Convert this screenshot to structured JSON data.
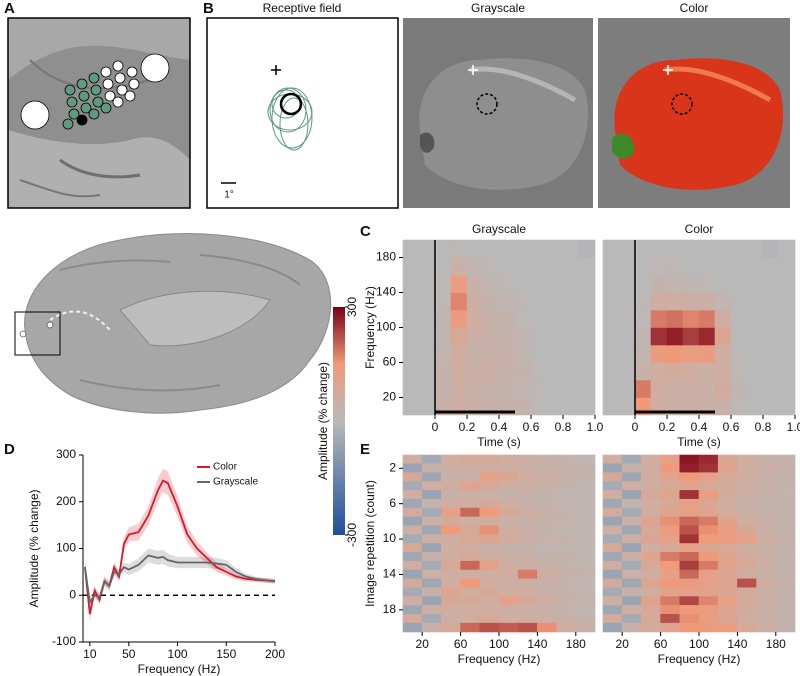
{
  "panel_labels": [
    "A",
    "B",
    "C",
    "D",
    "E"
  ],
  "panel_b": {
    "titles": [
      "Receptive field",
      "Grayscale",
      "Color"
    ],
    "scale_label": "1°"
  },
  "chart_data": [
    {
      "type": "heatmap",
      "title": "Grayscale",
      "xlabel": "Time (s)",
      "ylabel": "Frequency (Hz)",
      "xlim": [
        -0.2,
        1.0
      ],
      "ylim": [
        0,
        200
      ],
      "xticks": [
        0,
        0.2,
        0.4,
        0.6,
        0.8,
        {
          "value": 1,
          "label": "1.0"
        }
      ],
      "yticks": [
        20,
        60,
        100,
        140,
        180
      ],
      "x_edges": [
        -0.2,
        -0.1,
        0,
        0.1,
        0.2,
        0.3,
        0.4,
        0.5,
        0.6,
        0.7,
        0.8,
        0.9,
        1.0
      ],
      "y_edges": [
        0,
        20,
        40,
        60,
        80,
        100,
        120,
        140,
        160,
        180,
        200
      ],
      "event_line": 0,
      "stimulus_bar": [
        0,
        0.5
      ],
      "values": [
        [
          0,
          0,
          40,
          60,
          50,
          40,
          40,
          30,
          10,
          0,
          0,
          0
        ],
        [
          0,
          0,
          30,
          50,
          40,
          40,
          30,
          20,
          10,
          0,
          0,
          0
        ],
        [
          0,
          0,
          30,
          60,
          50,
          50,
          40,
          30,
          10,
          0,
          0,
          0
        ],
        [
          0,
          0,
          20,
          60,
          40,
          40,
          40,
          20,
          0,
          0,
          0,
          0
        ],
        [
          0,
          0,
          20,
          80,
          50,
          40,
          30,
          20,
          0,
          0,
          0,
          0
        ],
        [
          0,
          0,
          20,
          140,
          60,
          40,
          30,
          10,
          0,
          0,
          0,
          0
        ],
        [
          0,
          0,
          10,
          170,
          50,
          30,
          20,
          10,
          0,
          0,
          0,
          0
        ],
        [
          0,
          0,
          10,
          130,
          40,
          20,
          10,
          0,
          0,
          0,
          0,
          0
        ],
        [
          0,
          0,
          0,
          40,
          20,
          10,
          0,
          0,
          0,
          0,
          0,
          0
        ],
        [
          0,
          0,
          0,
          10,
          0,
          0,
          0,
          0,
          0,
          0,
          0,
          -10
        ]
      ]
    },
    {
      "type": "heatmap",
      "title": "Color",
      "xlabel": "Time (s)",
      "xlim": [
        -0.2,
        1.0
      ],
      "ylim": [
        0,
        200
      ],
      "xticks": [
        0,
        0.2,
        0.4,
        0.6,
        0.8,
        {
          "value": 1,
          "label": "1.0"
        }
      ],
      "x_edges": [
        -0.2,
        -0.1,
        0,
        0.1,
        0.2,
        0.3,
        0.4,
        0.5,
        0.6,
        0.7,
        0.8,
        0.9,
        1.0
      ],
      "y_edges": [
        0,
        20,
        40,
        60,
        80,
        100,
        120,
        140,
        160,
        180,
        200
      ],
      "event_line": 0,
      "stimulus_bar": [
        0,
        0.5
      ],
      "values": [
        [
          0,
          0,
          150,
          60,
          50,
          50,
          50,
          40,
          10,
          0,
          0,
          0
        ],
        [
          0,
          0,
          180,
          60,
          50,
          50,
          40,
          70,
          20,
          0,
          0,
          0
        ],
        [
          0,
          0,
          40,
          60,
          70,
          60,
          50,
          60,
          10,
          0,
          0,
          0
        ],
        [
          0,
          0,
          20,
          140,
          150,
          130,
          140,
          60,
          10,
          0,
          0,
          0
        ],
        [
          0,
          0,
          20,
          250,
          270,
          240,
          260,
          90,
          0,
          0,
          0,
          0
        ],
        [
          0,
          0,
          10,
          180,
          190,
          170,
          180,
          60,
          0,
          0,
          0,
          0
        ],
        [
          0,
          0,
          10,
          60,
          60,
          50,
          50,
          20,
          0,
          0,
          0,
          0
        ],
        [
          0,
          0,
          0,
          30,
          20,
          20,
          10,
          0,
          0,
          0,
          0,
          0
        ],
        [
          0,
          0,
          0,
          10,
          10,
          0,
          0,
          0,
          0,
          0,
          0,
          0
        ],
        [
          0,
          0,
          0,
          0,
          0,
          0,
          0,
          0,
          0,
          0,
          -10,
          0
        ]
      ]
    },
    {
      "type": "colorbar",
      "label": "Amplitude (% change)",
      "clim": [
        -300,
        300
      ],
      "ticks": [
        300,
        -300
      ],
      "stops": [
        -300,
        0,
        150,
        300
      ],
      "colors": [
        "#1f4f9c",
        "#b9b9b9",
        "#f09a7a",
        "#7a0016"
      ]
    },
    {
      "type": "line",
      "xlabel": "Frequency (Hz)",
      "ylabel": "Amplitude (% change)",
      "xlim": [
        3,
        200
      ],
      "ylim": [
        -100,
        300
      ],
      "xticks": [
        10,
        50,
        100,
        150,
        200
      ],
      "yticks": [
        -100,
        0,
        100,
        200,
        300
      ],
      "hline": 0,
      "legend": "upper right",
      "x": [
        5,
        10,
        15,
        20,
        25,
        30,
        35,
        40,
        45,
        50,
        60,
        70,
        80,
        85,
        90,
        100,
        110,
        120,
        130,
        140,
        150,
        160,
        170,
        180,
        190,
        200
      ],
      "series": [
        {
          "name": "Color",
          "color": "#d7192b",
          "values": [
            60,
            -40,
            10,
            -10,
            30,
            20,
            60,
            40,
            110,
            130,
            135,
            170,
            225,
            245,
            240,
            190,
            130,
            100,
            80,
            60,
            50,
            40,
            35,
            33,
            32,
            30
          ],
          "errors": [
            15,
            15,
            10,
            10,
            10,
            10,
            10,
            12,
            15,
            15,
            18,
            20,
            25,
            25,
            25,
            22,
            18,
            15,
            12,
            10,
            8,
            6,
            5,
            5,
            5,
            5
          ]
        },
        {
          "name": "Grayscale",
          "color": "#666666",
          "values": [
            60,
            -15,
            0,
            -5,
            30,
            20,
            50,
            45,
            60,
            55,
            65,
            85,
            80,
            82,
            75,
            70,
            70,
            70,
            70,
            68,
            65,
            50,
            40,
            35,
            32,
            30
          ],
          "errors": [
            12,
            12,
            8,
            8,
            8,
            8,
            8,
            10,
            10,
            12,
            14,
            15,
            15,
            15,
            14,
            12,
            12,
            12,
            12,
            12,
            10,
            8,
            6,
            5,
            5,
            5
          ]
        }
      ]
    },
    {
      "type": "heatmap",
      "xlabel": "Frequency (Hz)",
      "ylabel": "Image repetition (count)",
      "xlim": [
        0,
        200
      ],
      "ylim": [
        20.5,
        0.5
      ],
      "xticks": [
        20,
        60,
        100,
        140,
        180
      ],
      "yticks": [
        2,
        6,
        10,
        14,
        18
      ],
      "x_edges": [
        0,
        20,
        40,
        60,
        80,
        100,
        120,
        140,
        160,
        180,
        200
      ],
      "y_edges": [
        0.5,
        1.5,
        2.5,
        3.5,
        4.5,
        5.5,
        6.5,
        7.5,
        8.5,
        9.5,
        10.5,
        11.5,
        12.5,
        13.5,
        14.5,
        15.5,
        16.5,
        17.5,
        18.5,
        19.5,
        20.5
      ],
      "values": [
        [
          60,
          -40,
          60,
          80,
          80,
          60,
          50,
          40,
          30,
          20
        ],
        [
          -60,
          40,
          50,
          60,
          60,
          60,
          50,
          40,
          40,
          30
        ],
        [
          80,
          -50,
          40,
          40,
          120,
          90,
          60,
          50,
          40,
          30
        ],
        [
          -40,
          60,
          60,
          100,
          80,
          60,
          50,
          40,
          30,
          20
        ],
        [
          60,
          -60,
          40,
          50,
          40,
          30,
          40,
          30,
          20,
          20
        ],
        [
          -50,
          30,
          60,
          60,
          80,
          60,
          40,
          30,
          20,
          20
        ],
        [
          70,
          -40,
          120,
          200,
          150,
          80,
          60,
          40,
          30,
          20
        ],
        [
          -60,
          40,
          80,
          60,
          60,
          50,
          40,
          40,
          30,
          20
        ],
        [
          50,
          -50,
          150,
          80,
          160,
          60,
          40,
          30,
          20,
          20
        ],
        [
          -40,
          50,
          60,
          80,
          100,
          70,
          50,
          40,
          30,
          20
        ],
        [
          80,
          -60,
          60,
          60,
          40,
          30,
          30,
          20,
          20,
          20
        ],
        [
          -50,
          40,
          60,
          80,
          60,
          50,
          40,
          30,
          30,
          20
        ],
        [
          60,
          -40,
          80,
          200,
          120,
          60,
          50,
          40,
          30,
          20
        ],
        [
          -60,
          50,
          60,
          60,
          60,
          60,
          180,
          60,
          40,
          30
        ],
        [
          70,
          -50,
          60,
          150,
          60,
          50,
          50,
          40,
          30,
          20
        ],
        [
          -40,
          40,
          100,
          60,
          80,
          60,
          60,
          40,
          30,
          20
        ],
        [
          60,
          -60,
          80,
          80,
          60,
          120,
          80,
          60,
          40,
          30
        ],
        [
          -50,
          50,
          60,
          60,
          60,
          50,
          40,
          40,
          30,
          20
        ],
        [
          70,
          -40,
          50,
          60,
          80,
          60,
          60,
          50,
          40,
          30
        ],
        [
          -60,
          40,
          80,
          200,
          220,
          210,
          220,
          160,
          60,
          40
        ]
      ]
    },
    {
      "type": "heatmap",
      "xlabel": "Frequency (Hz)",
      "xlim": [
        0,
        200
      ],
      "ylim": [
        20.5,
        0.5
      ],
      "xticks": [
        20,
        60,
        100,
        140,
        180
      ],
      "x_edges": [
        0,
        20,
        40,
        60,
        80,
        100,
        120,
        140,
        160,
        180,
        200
      ],
      "y_edges": [
        0.5,
        1.5,
        2.5,
        3.5,
        4.5,
        5.5,
        6.5,
        7.5,
        8.5,
        9.5,
        10.5,
        11.5,
        12.5,
        13.5,
        14.5,
        15.5,
        16.5,
        17.5,
        18.5,
        19.5,
        20.5
      ],
      "values": [
        [
          60,
          -40,
          60,
          120,
          280,
          260,
          90,
          60,
          40,
          30
        ],
        [
          -60,
          40,
          60,
          150,
          270,
          250,
          100,
          60,
          50,
          40
        ],
        [
          80,
          -50,
          60,
          100,
          150,
          120,
          80,
          60,
          40,
          30
        ],
        [
          -40,
          60,
          60,
          80,
          100,
          80,
          70,
          50,
          40,
          30
        ],
        [
          60,
          -60,
          80,
          100,
          250,
          130,
          70,
          50,
          40,
          30
        ],
        [
          -50,
          30,
          60,
          80,
          120,
          90,
          60,
          40,
          30,
          30
        ],
        [
          70,
          -40,
          60,
          100,
          120,
          100,
          70,
          50,
          40,
          30
        ],
        [
          -60,
          40,
          100,
          160,
          200,
          180,
          110,
          60,
          40,
          30
        ],
        [
          50,
          -50,
          80,
          140,
          220,
          160,
          130,
          80,
          50,
          30
        ],
        [
          -40,
          50,
          90,
          120,
          250,
          150,
          140,
          120,
          60,
          40
        ],
        [
          80,
          -60,
          60,
          80,
          120,
          90,
          80,
          60,
          40,
          30
        ],
        [
          -50,
          40,
          100,
          180,
          200,
          150,
          100,
          70,
          50,
          30
        ],
        [
          60,
          -40,
          80,
          150,
          240,
          180,
          110,
          80,
          50,
          30
        ],
        [
          -60,
          50,
          60,
          120,
          200,
          120,
          90,
          60,
          40,
          30
        ],
        [
          70,
          -50,
          100,
          150,
          140,
          120,
          100,
          220,
          60,
          40
        ],
        [
          -40,
          40,
          60,
          110,
          120,
          110,
          90,
          70,
          50,
          30
        ],
        [
          60,
          -60,
          110,
          180,
          230,
          170,
          120,
          70,
          50,
          30
        ],
        [
          -50,
          50,
          80,
          160,
          150,
          140,
          100,
          70,
          50,
          30
        ],
        [
          70,
          -40,
          80,
          220,
          160,
          130,
          90,
          60,
          40,
          30
        ],
        [
          -60,
          40,
          70,
          100,
          150,
          140,
          130,
          80,
          50,
          30
        ]
      ]
    }
  ]
}
